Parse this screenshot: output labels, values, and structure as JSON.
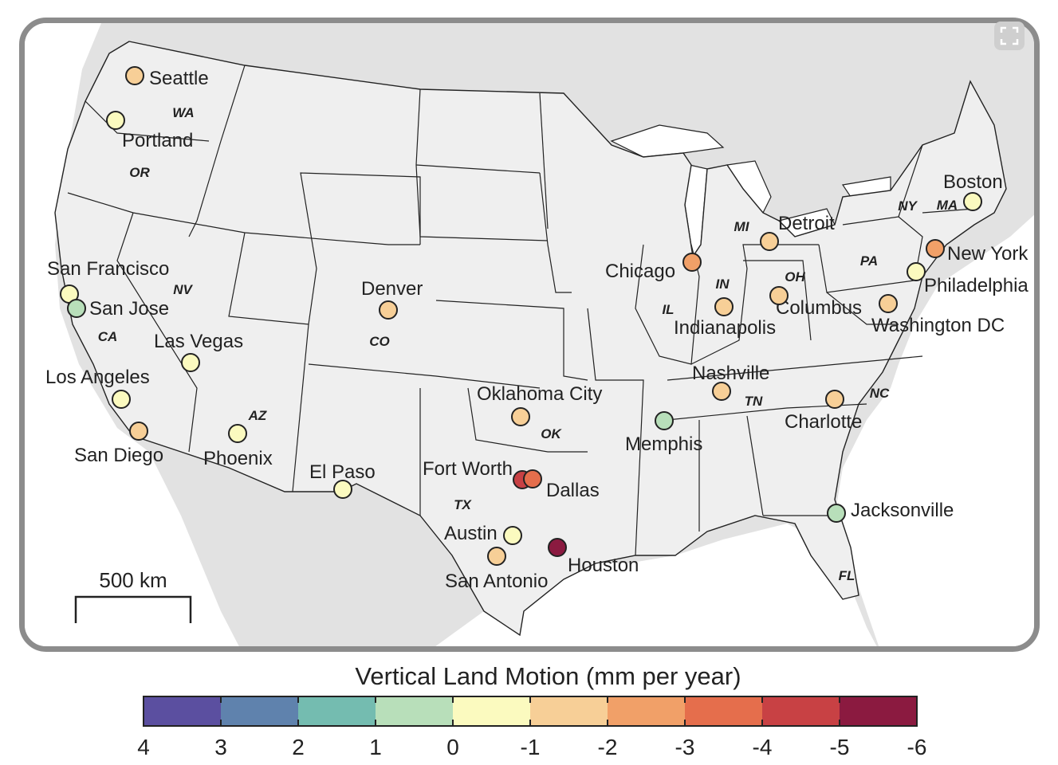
{
  "map": {
    "scale_bar_label": "500 km",
    "colors": {
      "land_outside": "#e2e2e2",
      "ocean": "#ffffff",
      "usa_fill": "#efefef",
      "frame": "#8c8c8c"
    },
    "states": [
      {
        "abbr": "WA"
      },
      {
        "abbr": "OR"
      },
      {
        "abbr": "CA"
      },
      {
        "abbr": "NV"
      },
      {
        "abbr": "AZ"
      },
      {
        "abbr": "CO"
      },
      {
        "abbr": "TX"
      },
      {
        "abbr": "OK"
      },
      {
        "abbr": "IL"
      },
      {
        "abbr": "IN"
      },
      {
        "abbr": "MI"
      },
      {
        "abbr": "OH"
      },
      {
        "abbr": "PA"
      },
      {
        "abbr": "NY"
      },
      {
        "abbr": "MA"
      },
      {
        "abbr": "TN"
      },
      {
        "abbr": "NC"
      },
      {
        "abbr": "FL"
      }
    ],
    "cities": [
      {
        "name": "Seattle",
        "vlm": -1.5
      },
      {
        "name": "Portland",
        "vlm": -0.5
      },
      {
        "name": "San Francisco",
        "vlm": -0.5
      },
      {
        "name": "San Jose",
        "vlm": 0.5
      },
      {
        "name": "Las Vegas",
        "vlm": -0.5
      },
      {
        "name": "Los Angeles",
        "vlm": -0.5
      },
      {
        "name": "San Diego",
        "vlm": -1.5
      },
      {
        "name": "Phoenix",
        "vlm": -0.5
      },
      {
        "name": "Denver",
        "vlm": -1.5
      },
      {
        "name": "El Paso",
        "vlm": -0.5
      },
      {
        "name": "Oklahoma City",
        "vlm": -1.5
      },
      {
        "name": "Fort Worth",
        "vlm": -4.5
      },
      {
        "name": "Dallas",
        "vlm": -3.5
      },
      {
        "name": "Austin",
        "vlm": -0.5
      },
      {
        "name": "San Antonio",
        "vlm": -1.5
      },
      {
        "name": "Houston",
        "vlm": -5.5
      },
      {
        "name": "Memphis",
        "vlm": 0.5
      },
      {
        "name": "Nashville",
        "vlm": -1.5
      },
      {
        "name": "Charlotte",
        "vlm": -1.5
      },
      {
        "name": "Jacksonville",
        "vlm": 0.5
      },
      {
        "name": "Chicago",
        "vlm": -2.5
      },
      {
        "name": "Indianapolis",
        "vlm": -1.5
      },
      {
        "name": "Columbus",
        "vlm": -1.5
      },
      {
        "name": "Detroit",
        "vlm": -1.5
      },
      {
        "name": "Washington DC",
        "vlm": -1.5
      },
      {
        "name": "Philadelphia",
        "vlm": -0.5
      },
      {
        "name": "New York",
        "vlm": -2.5
      },
      {
        "name": "Boston",
        "vlm": -0.5
      }
    ]
  },
  "colorbar": {
    "title": "Vertical Land Motion (mm per year)",
    "ticks": [
      "4",
      "3",
      "2",
      "1",
      "0",
      "-1",
      "-2",
      "-3",
      "-4",
      "-5",
      "-6"
    ],
    "bins": [
      {
        "from": 4,
        "to": 3,
        "color": "#5b4fa0"
      },
      {
        "from": 3,
        "to": 2,
        "color": "#5f82ad"
      },
      {
        "from": 2,
        "to": 1,
        "color": "#74bcb0"
      },
      {
        "from": 1,
        "to": 0,
        "color": "#b8dfba"
      },
      {
        "from": 0,
        "to": -1,
        "color": "#fbfabf"
      },
      {
        "from": -1,
        "to": -2,
        "color": "#f7cf97"
      },
      {
        "from": -2,
        "to": -3,
        "color": "#f1a068"
      },
      {
        "from": -3,
        "to": -4,
        "color": "#e56e4c"
      },
      {
        "from": -4,
        "to": -5,
        "color": "#c84144"
      },
      {
        "from": -5,
        "to": -6,
        "color": "#8b1a40"
      }
    ]
  }
}
